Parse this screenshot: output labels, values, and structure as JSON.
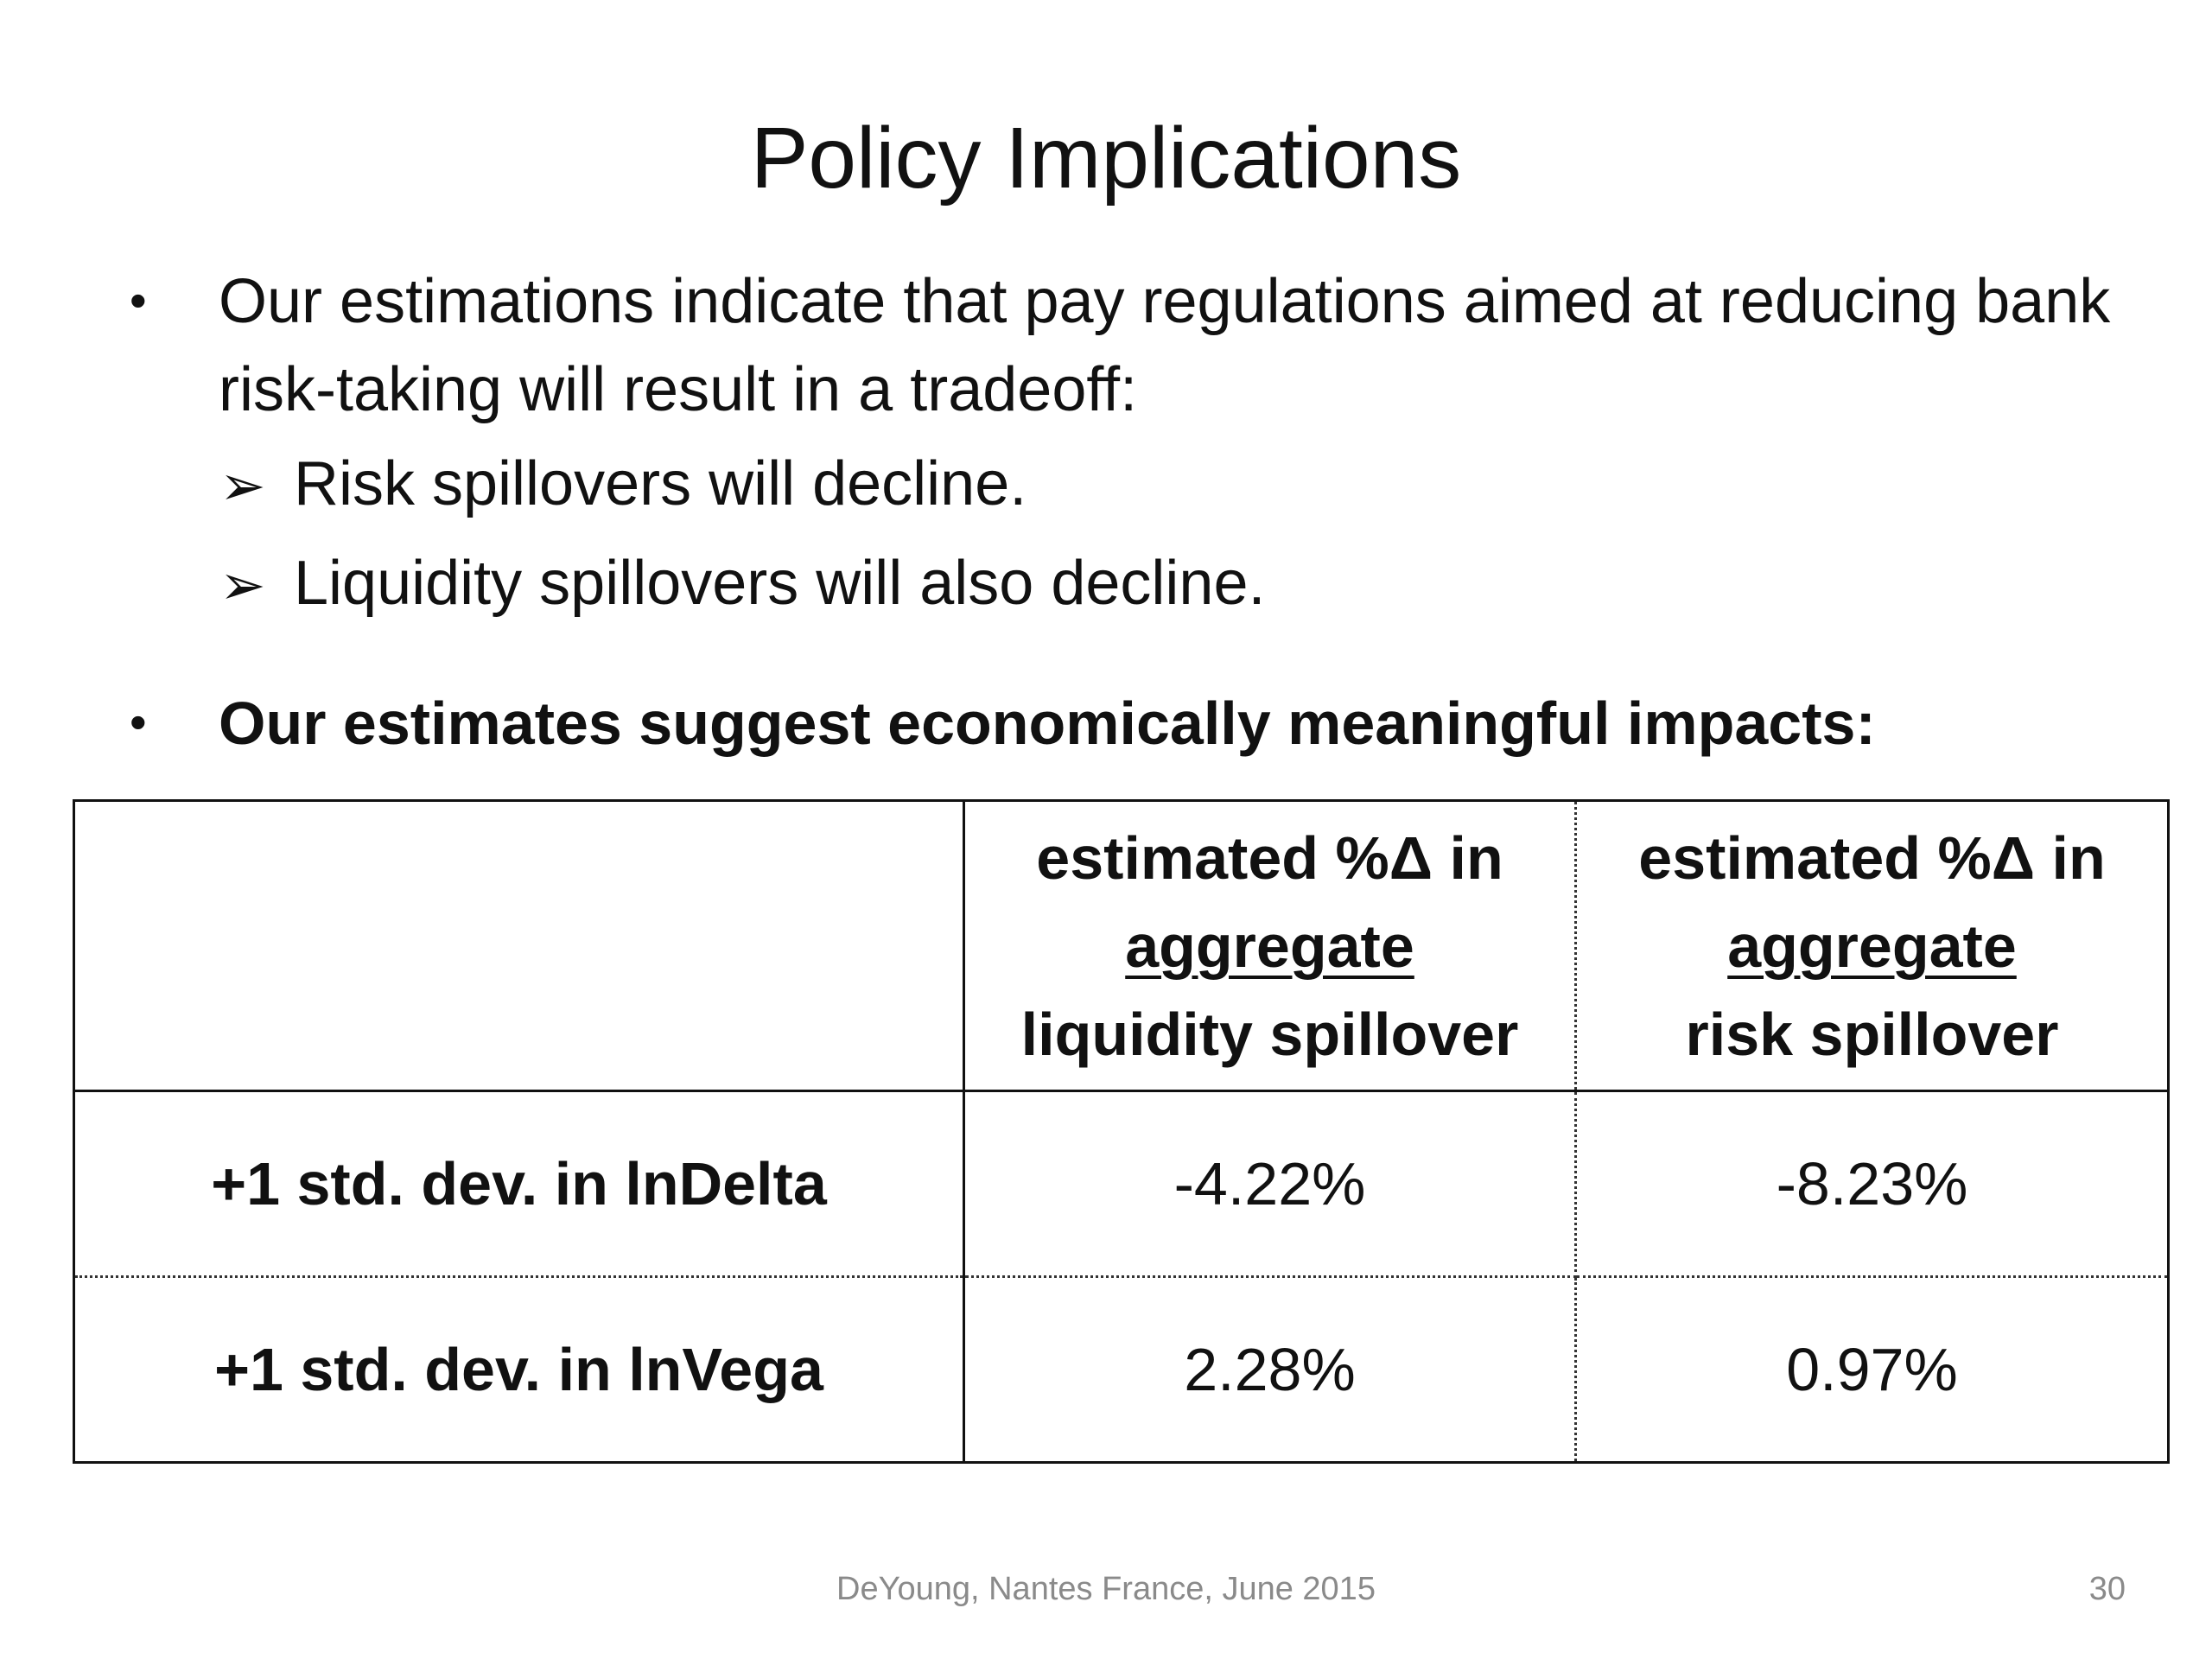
{
  "slide": {
    "title": "Policy Implications"
  },
  "bullets": [
    {
      "text": "Our estimations indicate that pay regulations aimed at reducing bank risk-taking will result in a tradeoff:",
      "sub_bullets": [
        "Risk spillovers will decline.",
        "Liquidity spillovers will also decline."
      ]
    },
    {
      "text": "Our estimates suggest economically meaningful impacts:"
    }
  ],
  "table": {
    "headers": [
      "",
      {
        "line1": "estimated %Δ in",
        "line2": "aggregate",
        "line3": "liquidity spillover"
      },
      {
        "line1": "estimated %Δ in",
        "line2": "aggregate",
        "line3": "risk spillover"
      }
    ],
    "rows": [
      {
        "label": "+1 std. dev. in lnDelta",
        "liquidity": "-4.22%",
        "risk": "-8.23%"
      },
      {
        "label": "+1 std. dev. in lnVega",
        "liquidity": "2.28%",
        "risk": "0.97%"
      }
    ]
  },
  "footer": {
    "text": "DeYoung, Nantes France, June 2015",
    "page_number": "30"
  },
  "icons": {
    "bullet": "•",
    "arrow": "➢"
  }
}
